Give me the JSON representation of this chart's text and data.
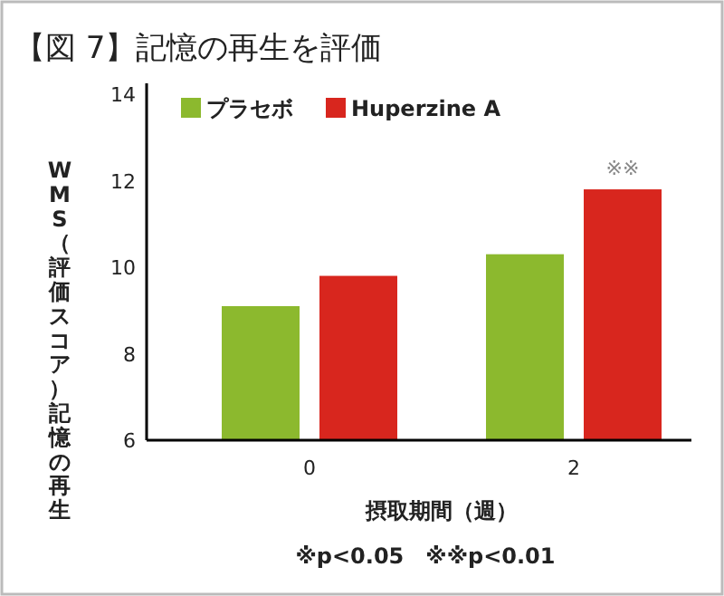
{
  "chart_data": {
    "type": "bar",
    "title": "【図 7】記憶の再生を評価",
    "xlabel": "摂取期間（週）",
    "ylabel": "WMS（評価スコア）記憶の再生",
    "categories": [
      "0",
      "2"
    ],
    "series": [
      {
        "name": "プラセボ",
        "color": "#8cb92e",
        "values": [
          9.1,
          10.3
        ]
      },
      {
        "name": "Huperzine A",
        "color": "#d8261e",
        "values": [
          9.8,
          11.8
        ]
      }
    ],
    "ylim": [
      6,
      14
    ],
    "yticks": [
      6,
      8,
      10,
      12,
      14
    ],
    "grid": false,
    "legend": "top",
    "annotations": [
      "※※",
      "※p<0.05　※※p<0.01"
    ]
  }
}
